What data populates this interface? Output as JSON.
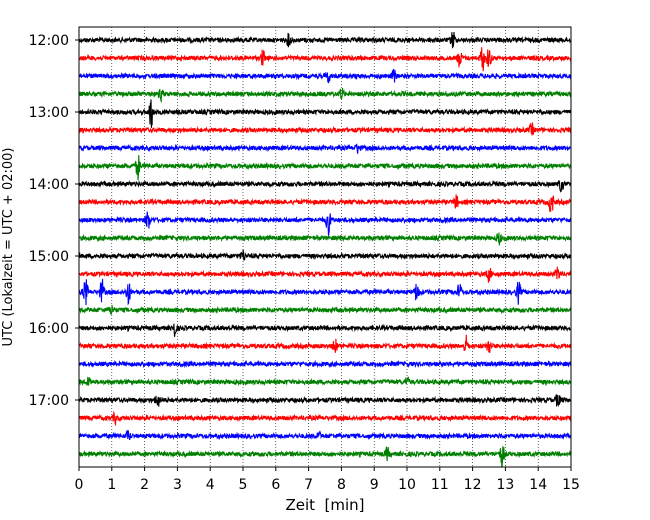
{
  "chart_data": {
    "type": "line",
    "title": "",
    "xlabel": "Zeit  [min]",
    "ylabel": "UTC (Lokalzeit = UTC + 02:00)",
    "xlim": [
      0,
      15
    ],
    "x_ticks": [
      "0",
      "1",
      "2",
      "3",
      "4",
      "5",
      "6",
      "7",
      "8",
      "9",
      "10",
      "11",
      "12",
      "13",
      "14",
      "15"
    ],
    "grid": "vertical dotted",
    "y_tick_labels": [
      "12:00",
      "13:00",
      "14:00",
      "15:00",
      "16:00",
      "17:00"
    ],
    "trace_colors": [
      "#000000",
      "#ff0000",
      "#0000ff",
      "#008000"
    ],
    "traces": [
      {
        "start": "12:00",
        "color": "#000000",
        "events": [
          [
            6.4,
            1.0
          ],
          [
            11.4,
            1.6
          ]
        ]
      },
      {
        "start": "12:15",
        "color": "#ff0000",
        "events": [
          [
            5.6,
            1.2
          ],
          [
            11.6,
            1.4
          ],
          [
            12.3,
            2.2
          ],
          [
            12.5,
            1.8
          ]
        ]
      },
      {
        "start": "12:30",
        "color": "#0000ff",
        "events": [
          [
            7.6,
            0.9
          ],
          [
            9.6,
            1.0
          ]
        ]
      },
      {
        "start": "12:45",
        "color": "#008000",
        "events": [
          [
            2.5,
            1.0
          ],
          [
            8.0,
            0.9
          ]
        ]
      },
      {
        "start": "13:00",
        "color": "#000000",
        "events": [
          [
            2.2,
            2.8
          ]
        ]
      },
      {
        "start": "13:15",
        "color": "#ff0000",
        "events": [
          [
            13.8,
            1.0
          ]
        ]
      },
      {
        "start": "13:30",
        "color": "#0000ff",
        "events": [
          [
            8.5,
            0.8
          ]
        ]
      },
      {
        "start": "13:45",
        "color": "#008000",
        "events": [
          [
            1.8,
            2.0
          ]
        ]
      },
      {
        "start": "14:00",
        "color": "#000000",
        "events": [
          [
            14.7,
            1.2
          ]
        ]
      },
      {
        "start": "14:15",
        "color": "#ff0000",
        "events": [
          [
            11.5,
            1.0
          ],
          [
            14.4,
            2.2
          ]
        ]
      },
      {
        "start": "14:30",
        "color": "#0000ff",
        "events": [
          [
            2.1,
            1.6
          ],
          [
            7.6,
            2.4
          ]
        ]
      },
      {
        "start": "14:45",
        "color": "#008000",
        "events": [
          [
            12.8,
            1.0
          ]
        ]
      },
      {
        "start": "15:00",
        "color": "#000000",
        "events": [
          [
            5.0,
            0.9
          ]
        ]
      },
      {
        "start": "15:15",
        "color": "#ff0000",
        "events": [
          [
            12.5,
            1.2
          ],
          [
            14.6,
            1.0
          ]
        ]
      },
      {
        "start": "15:30",
        "color": "#0000ff",
        "events": [
          [
            0.2,
            2.2
          ],
          [
            0.7,
            2.0
          ],
          [
            1.5,
            2.0
          ],
          [
            10.3,
            1.6
          ],
          [
            11.6,
            1.4
          ],
          [
            13.4,
            1.8
          ]
        ]
      },
      {
        "start": "15:45",
        "color": "#008000",
        "events": [
          [
            1.0,
            0.8
          ]
        ]
      },
      {
        "start": "16:00",
        "color": "#000000",
        "events": [
          [
            2.9,
            1.4
          ]
        ]
      },
      {
        "start": "16:15",
        "color": "#ff0000",
        "events": [
          [
            7.8,
            1.2
          ],
          [
            11.8,
            1.6
          ],
          [
            12.5,
            1.2
          ]
        ]
      },
      {
        "start": "16:30",
        "color": "#0000ff",
        "events": []
      },
      {
        "start": "16:45",
        "color": "#008000",
        "events": [
          [
            0.3,
            0.8
          ],
          [
            10.0,
            0.8
          ]
        ]
      },
      {
        "start": "17:00",
        "color": "#000000",
        "events": [
          [
            2.4,
            1.2
          ],
          [
            14.6,
            1.2
          ]
        ]
      },
      {
        "start": "17:15",
        "color": "#ff0000",
        "events": [
          [
            1.1,
            0.8
          ]
        ]
      },
      {
        "start": "17:30",
        "color": "#0000ff",
        "events": [
          [
            1.5,
            0.8
          ],
          [
            7.3,
            0.7
          ]
        ]
      },
      {
        "start": "17:45",
        "color": "#008000",
        "events": [
          [
            9.4,
            1.0
          ],
          [
            12.9,
            2.0
          ]
        ]
      }
    ]
  }
}
